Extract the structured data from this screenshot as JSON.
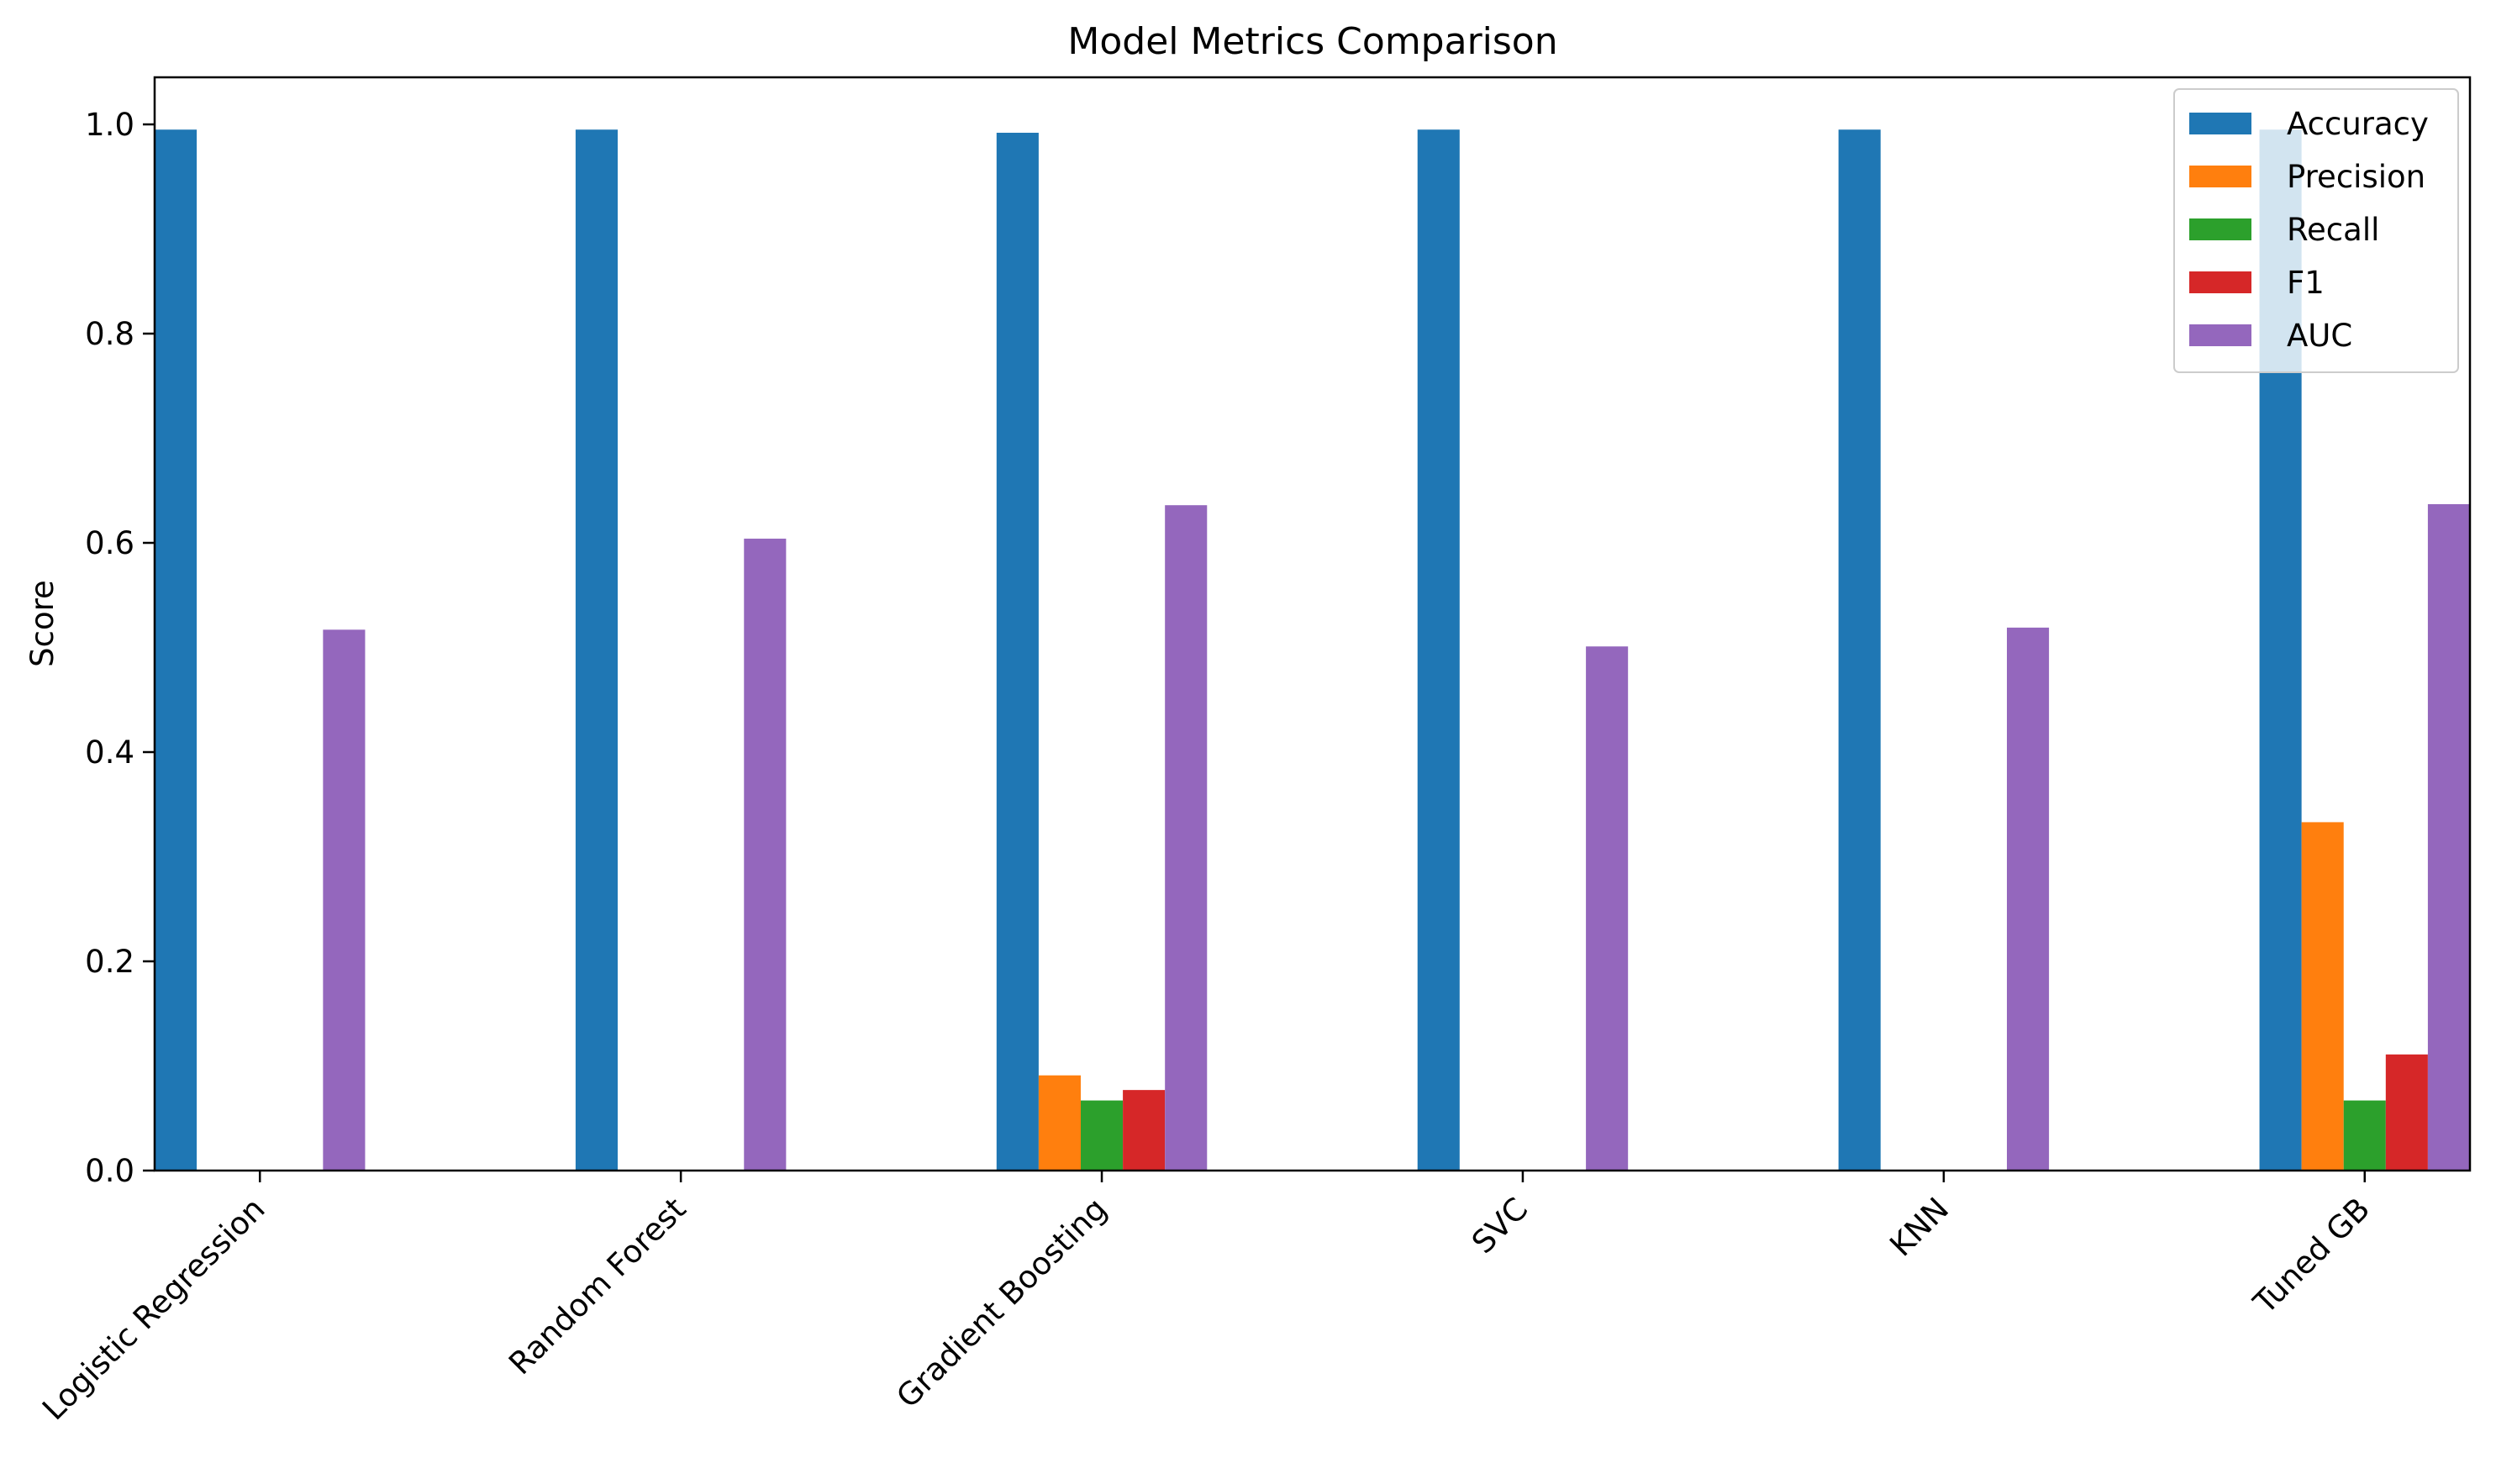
{
  "chart_data": {
    "type": "bar",
    "title": "Model Metrics Comparison",
    "xlabel": "",
    "ylabel": "Score",
    "ylim": [
      0,
      1.045
    ],
    "yticks": [
      "0.0",
      "0.2",
      "0.4",
      "0.6",
      "0.8",
      "1.0"
    ],
    "categories": [
      "Logistic Regression",
      "Random Forest",
      "Gradient Boosting",
      "SVC",
      "KNN",
      "Tuned GB"
    ],
    "series": [
      {
        "name": "Accuracy",
        "color": "#1f77b4",
        "values": [
          0.995,
          0.995,
          0.992,
          0.995,
          0.995,
          0.995
        ]
      },
      {
        "name": "Precision",
        "color": "#ff7f0e",
        "values": [
          0,
          0,
          0.091,
          0,
          0,
          0.333
        ]
      },
      {
        "name": "Recall",
        "color": "#2ca02c",
        "values": [
          0,
          0,
          0.067,
          0,
          0,
          0.067
        ]
      },
      {
        "name": "F1",
        "color": "#d62728",
        "values": [
          0,
          0,
          0.077,
          0,
          0,
          0.111
        ]
      },
      {
        "name": "AUC",
        "color": "#9467bd",
        "values": [
          0.517,
          0.604,
          0.636,
          0.501,
          0.519,
          0.637
        ]
      }
    ],
    "grid": false,
    "legend_position": "top-right"
  }
}
